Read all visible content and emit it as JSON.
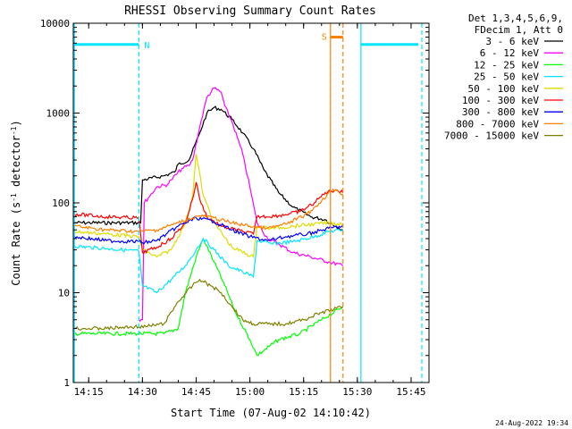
{
  "chart_data": {
    "type": "line",
    "title": "RHESSI Observing Summary Count Rates",
    "xlabel": "Start Time (07-Aug-02 14:10:42)",
    "ylabel_main": "Count Rate (s",
    "ylabel_sup1": "-1",
    "ylabel_mid": " detector",
    "ylabel_sup2": "-1",
    "ylabel_end": ")",
    "y_scale": "log",
    "xlim": [
      "14:10:42",
      "15:50:00"
    ],
    "ylim": [
      1,
      10000
    ],
    "x_ticks": [
      "14:15",
      "14:30",
      "14:45",
      "15:00",
      "15:15",
      "15:30",
      "15:45"
    ],
    "y_ticks": [
      "1",
      "10",
      "100",
      "1000",
      "10000"
    ],
    "legend_header": [
      "Det 1,3,4,5,6,9,",
      "FDecim 1, Att 0"
    ],
    "legend_position": "outside-right",
    "footer_date": "24-Aug-2022 19:34",
    "flags": [
      {
        "label": "N",
        "start": "14:11:00",
        "end": "14:29:00",
        "level": 5800,
        "color": "#00e5ff"
      },
      {
        "label": "",
        "start": "15:31:00",
        "end": "15:47:00",
        "level": 5800,
        "color": "#00e5ff"
      },
      {
        "label": "S",
        "start": "15:22:30",
        "end": "15:26:00",
        "level": 7000,
        "color": "#ff7f00"
      }
    ],
    "vertical_lines": [
      {
        "time": "14:11:00",
        "style": "solid",
        "color": "#00e5ff"
      },
      {
        "time": "14:29:00",
        "style": "dashed",
        "color": "#00e5ff"
      },
      {
        "time": "15:31:00",
        "style": "solid",
        "color": "#00e5ff"
      },
      {
        "time": "15:48:00",
        "style": "dashed",
        "color": "#00e5ff"
      },
      {
        "time": "15:22:30",
        "style": "solid",
        "color": "#ff7f00"
      },
      {
        "time": "15:26:00",
        "style": "dashed",
        "color": "#ff7f00"
      }
    ],
    "series": [
      {
        "name": "3 - 6 keV",
        "color": "#000000",
        "x": [
          "14:11",
          "14:29:30",
          "14:30",
          "14:36",
          "14:39",
          "14:40",
          "14:43",
          "14:46",
          "14:48",
          "14:50",
          "14:52",
          "14:55",
          "14:58",
          "15:01",
          "15:04",
          "15:08",
          "15:12",
          "15:17",
          "15:21",
          "15:24",
          "15:26"
        ],
        "y": [
          60,
          60,
          180,
          200,
          220,
          270,
          300,
          600,
          1000,
          1150,
          1100,
          850,
          600,
          400,
          230,
          130,
          90,
          70,
          65,
          55,
          50
        ]
      },
      {
        "name": "6 - 12 keV",
        "color": "#ff00ff",
        "x": [
          "14:29",
          "14:30",
          "14:30:30",
          "14:34",
          "14:37",
          "14:38",
          "14:41",
          "14:43",
          "14:44",
          "14:46",
          "14:48",
          "14:50",
          "14:52",
          "14:53",
          "14:55",
          "14:58",
          "15:00",
          "15:02",
          "15:05",
          "15:08",
          "15:12",
          "15:17",
          "15:22",
          "15:26"
        ],
        "y": [
          5,
          5,
          100,
          150,
          160,
          180,
          240,
          260,
          300,
          700,
          1500,
          1900,
          1700,
          1200,
          800,
          350,
          150,
          60,
          40,
          35,
          28,
          25,
          22,
          20
        ]
      },
      {
        "name": "12 - 25 keV",
        "color": "#00ff00",
        "x": [
          "14:11",
          "14:29",
          "14:36",
          "14:40",
          "14:42",
          "14:45",
          "14:47",
          "14:50",
          "14:53",
          "14:56",
          "15:00",
          "15:02",
          "15:08",
          "15:14",
          "15:20",
          "15:26"
        ],
        "y": [
          3.5,
          3.5,
          3.5,
          4,
          10,
          25,
          40,
          22,
          12,
          6,
          3,
          2,
          3,
          3.5,
          5,
          7
        ]
      },
      {
        "name": "25 - 50 keV",
        "color": "#00e5ff",
        "x": [
          "14:11",
          "14:20",
          "14:29",
          "14:30",
          "14:34",
          "14:38",
          "14:42",
          "14:45",
          "14:47",
          "14:50",
          "14:54",
          "14:58",
          "15:01",
          "15:02",
          "15:06",
          "15:12",
          "15:18",
          "15:22",
          "15:26"
        ],
        "y": [
          33,
          31,
          29,
          12,
          10,
          14,
          20,
          30,
          40,
          30,
          20,
          17,
          15,
          38,
          35,
          37,
          42,
          48,
          50
        ]
      },
      {
        "name": "50 - 100 keV",
        "color": "#dddd00",
        "x": [
          "14:11",
          "14:20",
          "14:29",
          "14:30",
          "14:34",
          "14:38",
          "14:42",
          "14:44",
          "14:45",
          "14:47",
          "14:50",
          "14:55",
          "15:01",
          "15:02",
          "15:06",
          "15:12",
          "15:18",
          "15:22",
          "15:26"
        ],
        "y": [
          48,
          45,
          42,
          30,
          25,
          30,
          60,
          120,
          350,
          120,
          60,
          32,
          25,
          55,
          52,
          55,
          58,
          60,
          58
        ]
      },
      {
        "name": "100 - 300 keV",
        "color": "#ff0000",
        "x": [
          "14:11",
          "14:20",
          "14:29",
          "14:30",
          "14:34",
          "14:38",
          "14:42",
          "14:44",
          "14:45",
          "14:46",
          "14:48",
          "14:52",
          "14:58",
          "15:01",
          "15:02",
          "15:08",
          "15:14",
          "15:18",
          "15:21",
          "15:24",
          "15:26"
        ],
        "y": [
          75,
          70,
          68,
          28,
          32,
          40,
          60,
          110,
          170,
          110,
          70,
          55,
          48,
          45,
          70,
          72,
          80,
          100,
          130,
          140,
          130
        ]
      },
      {
        "name": "300 - 800 keV",
        "color": "#0000ff",
        "x": [
          "14:11",
          "14:20",
          "14:29",
          "14:30",
          "14:34",
          "14:40",
          "14:45",
          "14:50",
          "14:55",
          "15:00",
          "15:05",
          "15:10",
          "15:16",
          "15:22",
          "15:26"
        ],
        "y": [
          42,
          38,
          37,
          36,
          38,
          55,
          68,
          62,
          50,
          42,
          38,
          42,
          45,
          52,
          55
        ]
      },
      {
        "name": "800 - 7000 keV",
        "color": "#ff7f00",
        "x": [
          "14:11",
          "14:20",
          "14:29",
          "14:34",
          "14:40",
          "14:44",
          "14:46",
          "14:50",
          "14:55",
          "15:00",
          "15:05",
          "15:10",
          "15:16",
          "15:20",
          "15:22",
          "15:24",
          "15:26"
        ],
        "y": [
          55,
          50,
          48,
          50,
          60,
          68,
          72,
          68,
          60,
          55,
          52,
          58,
          75,
          105,
          130,
          140,
          125
        ]
      },
      {
        "name": "7000 - 15000 keV",
        "color": "#808000",
        "x": [
          "14:11",
          "14:20",
          "14:29",
          "14:31",
          "14:36",
          "14:40",
          "14:44",
          "14:46",
          "14:49",
          "14:52",
          "14:55",
          "14:58",
          "15:01",
          "15:05",
          "15:10",
          "15:15",
          "15:20",
          "15:26"
        ],
        "y": [
          4,
          4,
          4.2,
          4.2,
          4.5,
          8,
          12,
          14,
          12,
          10,
          7,
          5,
          4.5,
          4.5,
          4.5,
          5,
          6,
          7
        ]
      }
    ]
  }
}
